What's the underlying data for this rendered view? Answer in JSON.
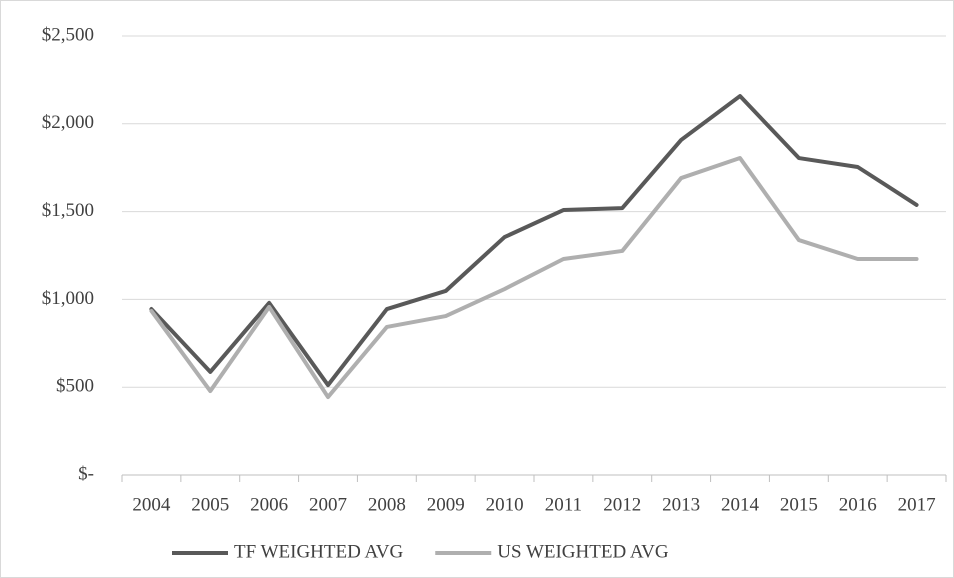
{
  "chart_data": {
    "type": "line",
    "categories": [
      "2004",
      "2005",
      "2006",
      "2007",
      "2008",
      "2009",
      "2010",
      "2011",
      "2012",
      "2013",
      "2014",
      "2015",
      "2016",
      "2017"
    ],
    "series": [
      {
        "name": "TF WEIGHTED AVG",
        "color": "#595959",
        "values": [
          945,
          587,
          980,
          512,
          945,
          1048,
          1355,
          1509,
          1520,
          1908,
          2158,
          1805,
          1754,
          1538
        ]
      },
      {
        "name": "US WEIGHTED AVG",
        "color": "#afafaf",
        "values": [
          934,
          478,
          957,
          444,
          843,
          905,
          1059,
          1230,
          1276,
          1691,
          1805,
          1338,
          1230,
          1230
        ]
      }
    ],
    "ylim": [
      0,
      2500
    ],
    "yticks": [
      {
        "value": 0,
        "label": "$-"
      },
      {
        "value": 500,
        "label": "$500"
      },
      {
        "value": 1000,
        "label": "$1,000"
      },
      {
        "value": 1500,
        "label": "$1,500"
      },
      {
        "value": 2000,
        "label": "$2,000"
      },
      {
        "value": 2500,
        "label": "$2,500"
      }
    ],
    "grid": true,
    "legend": "bottom"
  }
}
